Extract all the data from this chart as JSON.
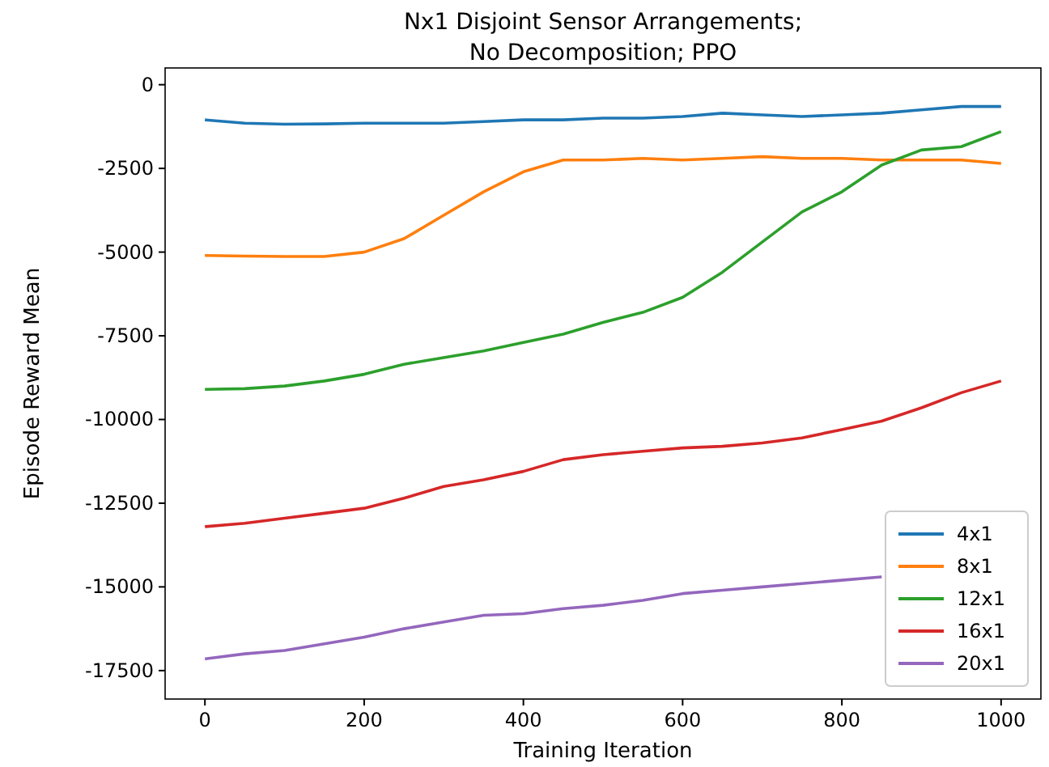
{
  "chart_data": {
    "type": "line",
    "title": "Nx1 Disjoint Sensor Arrangements;\nNo Decomposition; PPO",
    "xlabel": "Training Iteration",
    "ylabel": "Episode Reward Mean",
    "x": [
      0,
      50,
      100,
      150,
      200,
      250,
      300,
      350,
      400,
      450,
      500,
      550,
      600,
      650,
      700,
      750,
      800,
      850,
      900,
      950,
      1000
    ],
    "xlim": [
      -50,
      1050
    ],
    "ylim": [
      -18350,
      500
    ],
    "xticks": [
      0,
      200,
      400,
      600,
      800,
      1000
    ],
    "yticks": [
      0,
      -2500,
      -5000,
      -7500,
      -10000,
      -12500,
      -15000,
      -17500
    ],
    "legend": "bottom right",
    "grid": false,
    "line_style": "solid",
    "marker": "none",
    "series": [
      {
        "name": "4x1",
        "color": "#1f77b4",
        "values": [
          -1050,
          -1150,
          -1180,
          -1170,
          -1150,
          -1150,
          -1150,
          -1100,
          -1050,
          -1050,
          -1000,
          -1000,
          -950,
          -850,
          -900,
          -950,
          -900,
          -850,
          -750,
          -650,
          -650
        ]
      },
      {
        "name": "8x1",
        "color": "#ff7f0e",
        "values": [
          -5100,
          -5120,
          -5130,
          -5130,
          -5000,
          -4600,
          -3900,
          -3200,
          -2600,
          -2250,
          -2250,
          -2200,
          -2250,
          -2200,
          -2150,
          -2200,
          -2200,
          -2250,
          -2250,
          -2250,
          -2350
        ]
      },
      {
        "name": "12x1",
        "color": "#2ca02c",
        "values": [
          -9100,
          -9080,
          -9000,
          -8850,
          -8650,
          -8350,
          -8150,
          -7950,
          -7700,
          -7450,
          -7100,
          -6800,
          -6350,
          -5600,
          -4700,
          -3800,
          -3200,
          -2400,
          -1950,
          -1850,
          -1400
        ]
      },
      {
        "name": "16x1",
        "color": "#d62728",
        "values": [
          -13200,
          -13100,
          -12950,
          -12800,
          -12650,
          -12350,
          -12000,
          -11800,
          -11550,
          -11200,
          -11050,
          -10950,
          -10850,
          -10800,
          -10700,
          -10550,
          -10300,
          -10050,
          -9650,
          -9200,
          -8850
        ]
      },
      {
        "name": "20x1",
        "color": "#9467bd",
        "values": [
          -17150,
          -17000,
          -16900,
          -16700,
          -16500,
          -16250,
          -16050,
          -15850,
          -15800,
          -15650,
          -15550,
          -15400,
          -15200,
          -15100,
          -15000,
          -14900,
          -14800,
          -14700,
          null,
          null,
          null
        ]
      }
    ]
  }
}
